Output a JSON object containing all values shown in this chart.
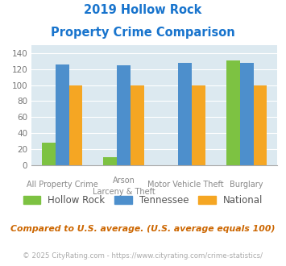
{
  "title_line1": "2019 Hollow Rock",
  "title_line2": "Property Crime Comparison",
  "title_color": "#1874cd",
  "x_labels_line1": [
    "All Property Crime",
    "Arson",
    "Motor Vehicle Theft",
    "Burglary"
  ],
  "x_labels_line2": [
    "",
    "Larceny & Theft",
    "",
    ""
  ],
  "series": {
    "Hollow Rock": [
      28,
      10,
      0,
      131
    ],
    "Tennessee": [
      126,
      125,
      128,
      128
    ],
    "National": [
      100,
      100,
      100,
      100
    ]
  },
  "colors": {
    "Hollow Rock": "#7dc242",
    "Tennessee": "#4d8fcc",
    "National": "#f5a623"
  },
  "ylim": [
    0,
    150
  ],
  "yticks": [
    0,
    20,
    40,
    60,
    80,
    100,
    120,
    140
  ],
  "plot_bg_color": "#dce9f0",
  "footer_text": "Compared to U.S. average. (U.S. average equals 100)",
  "footer_color": "#cc6600",
  "copyright_text": "© 2025 CityRating.com - https://www.cityrating.com/crime-statistics/",
  "copyright_color": "#aaaaaa",
  "grid_color": "#ffffff",
  "bar_width": 0.22
}
